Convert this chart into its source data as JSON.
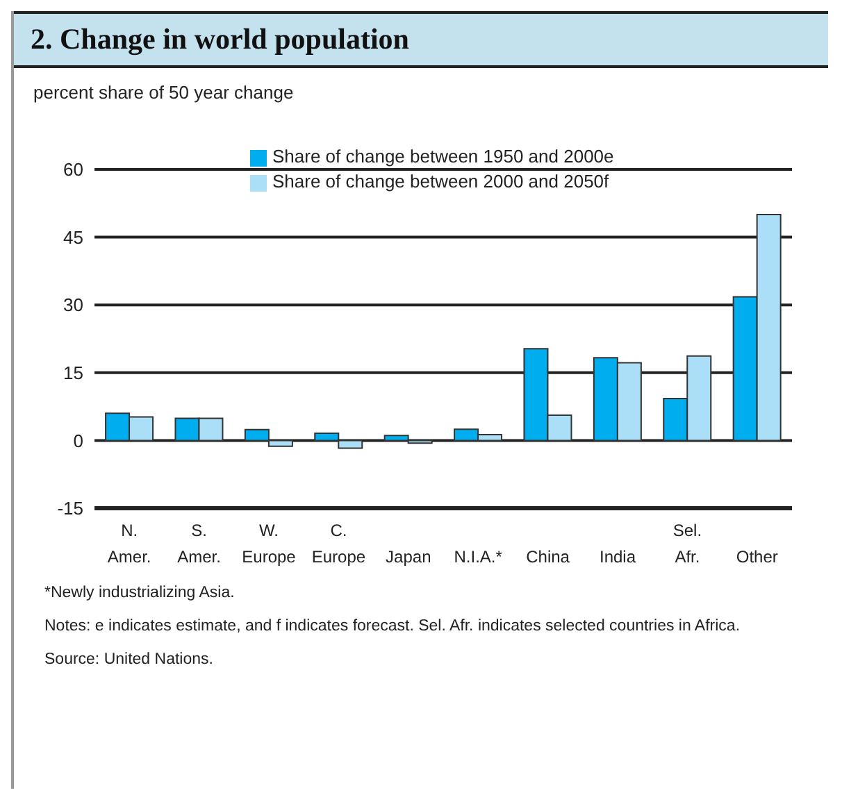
{
  "chart_data": {
    "type": "bar",
    "title": "2. Change in world population",
    "ylabel": "percent share of 50 year change",
    "categories": [
      "N. Amer.",
      "S. Amer.",
      "W. Europe",
      "C. Europe",
      "Japan",
      "N.I.A.*",
      "China",
      "India",
      "Sel. Afr.",
      "Other"
    ],
    "series": [
      {
        "name": "Share of change between 1950 and 2000e",
        "color": "#00aeef",
        "values": [
          6,
          4.9,
          2.4,
          1.6,
          1.1,
          2.5,
          20.3,
          18.3,
          9.3,
          31.8
        ]
      },
      {
        "name": "Share of change between 2000 and 2050f",
        "color": "#aadff7",
        "values": [
          5.2,
          4.9,
          -1.3,
          -1.7,
          -0.6,
          1.3,
          5.6,
          17.2,
          18.7,
          50
        ]
      }
    ],
    "ylim": [
      -15,
      60
    ],
    "yticks": [
      -15,
      0,
      15,
      30,
      45,
      60
    ],
    "grid": "y",
    "legend": "top",
    "annotations": [
      "*Newly industrializing Asia.",
      "Notes: e indicates estimate, and f indicates forecast. Sel. Afr. indicates selected countries in Africa.",
      "Source: United Nations."
    ]
  }
}
